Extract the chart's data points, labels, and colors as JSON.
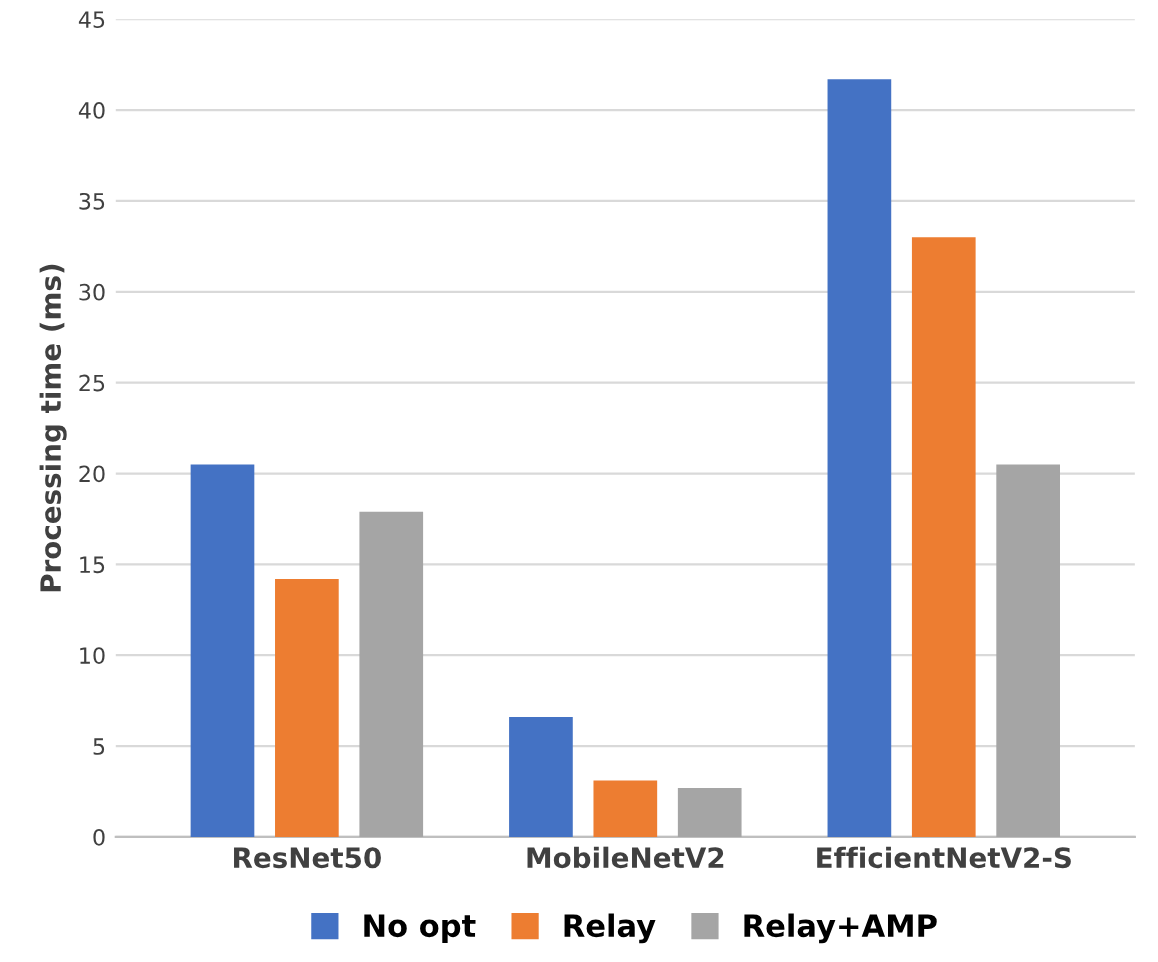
{
  "chart_data": {
    "type": "bar",
    "ylabel": "Processing time (ms)",
    "categories": [
      "ResNet50",
      "MobileNetV2",
      "EfficientNetV2-S"
    ],
    "series": [
      {
        "name": "No opt",
        "color": "#4472c4",
        "values": [
          20.5,
          6.6,
          41.7
        ]
      },
      {
        "name": "Relay",
        "color": "#ed7d31",
        "values": [
          14.2,
          3.1,
          33.0
        ]
      },
      {
        "name": "Relay+AMP",
        "color": "#a5a5a5",
        "values": [
          17.9,
          2.7,
          20.5
        ]
      }
    ],
    "ylim": [
      0,
      45
    ],
    "yticks": [
      0,
      5,
      10,
      15,
      20,
      25,
      30,
      35,
      40,
      45
    ],
    "grid": "y",
    "legend": "bottom"
  }
}
